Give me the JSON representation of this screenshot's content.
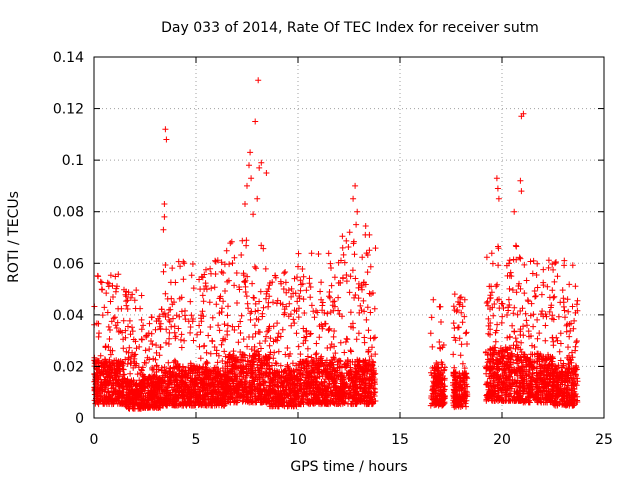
{
  "chart_data": {
    "type": "scatter",
    "title": "Day 033 of 2014, Rate Of TEC Index for receiver sutm",
    "xlabel": "GPS time / hours",
    "ylabel": "ROTI / TECUs",
    "xlim": [
      0,
      25
    ],
    "ylim": [
      0,
      0.14
    ],
    "xticks": [
      0,
      5,
      10,
      15,
      20,
      25
    ],
    "xtick_labels": [
      "0",
      "5",
      "10",
      "15",
      "20",
      "25"
    ],
    "yticks": [
      0,
      0.02,
      0.04,
      0.06,
      0.08,
      0.1,
      0.12,
      0.14
    ],
    "ytick_labels": [
      "0",
      "0.02",
      "0.04",
      "0.06",
      "0.08",
      "0.1",
      "0.12",
      "0.14"
    ],
    "grid": true,
    "marker": "+",
    "color": "#ff0000",
    "series": [
      {
        "name": "ROTI",
        "segments": [
          {
            "t": [
              0.0,
              1.5
            ],
            "base": 0.018,
            "spread": 0.022,
            "max": 0.056
          },
          {
            "t": [
              1.5,
              2.4
            ],
            "base": 0.012,
            "spread": 0.016,
            "max": 0.05
          },
          {
            "t": [
              2.4,
              3.3
            ],
            "base": 0.013,
            "spread": 0.016,
            "max": 0.04
          },
          {
            "t": [
              3.3,
              6.5
            ],
            "base": 0.016,
            "spread": 0.026,
            "max": 0.062
          },
          {
            "t": [
              6.5,
              8.6
            ],
            "base": 0.02,
            "spread": 0.032,
            "max": 0.07
          },
          {
            "t": [
              8.6,
              10.0
            ],
            "base": 0.015,
            "spread": 0.026,
            "max": 0.06
          },
          {
            "t": [
              10.0,
              12.0
            ],
            "base": 0.018,
            "spread": 0.03,
            "max": 0.065
          },
          {
            "t": [
              12.0,
              13.8
            ],
            "base": 0.018,
            "spread": 0.03,
            "max": 0.075
          },
          {
            "t": [
              16.5,
              17.2
            ],
            "base": 0.016,
            "spread": 0.022,
            "max": 0.048
          },
          {
            "t": [
              17.6,
              18.3
            ],
            "base": 0.014,
            "spread": 0.022,
            "max": 0.05
          },
          {
            "t": [
              19.2,
              21.0
            ],
            "base": 0.022,
            "spread": 0.03,
            "max": 0.068
          },
          {
            "t": [
              21.0,
              22.5
            ],
            "base": 0.02,
            "spread": 0.028,
            "max": 0.062
          },
          {
            "t": [
              22.5,
              23.7
            ],
            "base": 0.016,
            "spread": 0.026,
            "max": 0.062
          }
        ],
        "peaks": [
          {
            "x": 3.5,
            "y": 0.112
          },
          {
            "x": 3.55,
            "y": 0.108
          },
          {
            "x": 3.45,
            "y": 0.083
          },
          {
            "x": 3.4,
            "y": 0.073
          },
          {
            "x": 3.45,
            "y": 0.078
          },
          {
            "x": 7.4,
            "y": 0.083
          },
          {
            "x": 7.5,
            "y": 0.09
          },
          {
            "x": 7.6,
            "y": 0.098
          },
          {
            "x": 7.65,
            "y": 0.103
          },
          {
            "x": 7.7,
            "y": 0.093
          },
          {
            "x": 7.8,
            "y": 0.079
          },
          {
            "x": 7.9,
            "y": 0.115
          },
          {
            "x": 8.05,
            "y": 0.131
          },
          {
            "x": 8.1,
            "y": 0.097
          },
          {
            "x": 8.2,
            "y": 0.099
          },
          {
            "x": 8.45,
            "y": 0.095
          },
          {
            "x": 8.0,
            "y": 0.085
          },
          {
            "x": 12.8,
            "y": 0.09
          },
          {
            "x": 12.7,
            "y": 0.085
          },
          {
            "x": 12.9,
            "y": 0.08
          },
          {
            "x": 12.85,
            "y": 0.075
          },
          {
            "x": 13.3,
            "y": 0.071
          },
          {
            "x": 19.75,
            "y": 0.093
          },
          {
            "x": 19.8,
            "y": 0.089
          },
          {
            "x": 19.85,
            "y": 0.085
          },
          {
            "x": 20.6,
            "y": 0.08
          },
          {
            "x": 20.9,
            "y": 0.092
          },
          {
            "x": 20.95,
            "y": 0.088
          },
          {
            "x": 20.95,
            "y": 0.117
          },
          {
            "x": 21.05,
            "y": 0.118
          }
        ]
      }
    ]
  }
}
